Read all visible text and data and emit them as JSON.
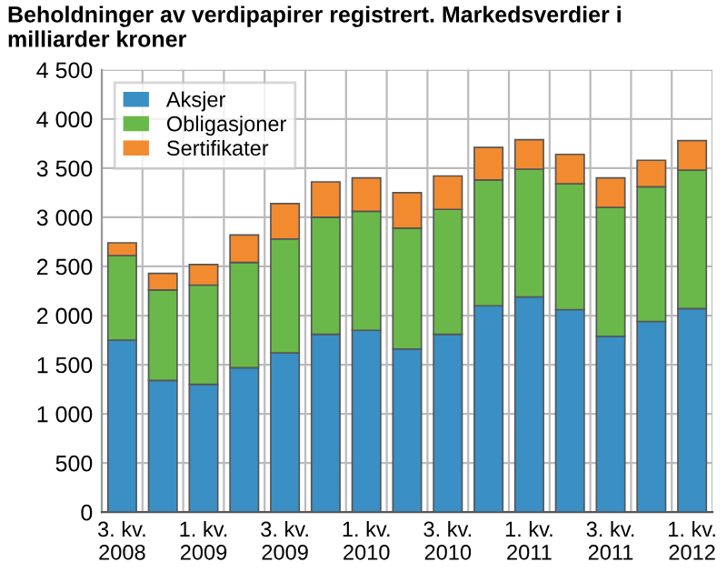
{
  "chart_data": {
    "type": "bar",
    "stacked": true,
    "title": "Beholdninger av verdipapirer registrert. Markedsverdier i milliarder kroner",
    "categories": [
      "3. kv.\n2008",
      null,
      "1. kv.\n2009",
      null,
      "3. kv.\n2009",
      null,
      "1. kv.\n2010",
      null,
      "3. kv.\n2010",
      null,
      "1. kv.\n2011",
      null,
      "3. kv.\n2011",
      null,
      "1. kv.\n2012"
    ],
    "series": [
      {
        "name": "Aksjer",
        "color": "#3a8fc4",
        "values": [
          1750,
          1340,
          1300,
          1470,
          1620,
          1810,
          1850,
          1660,
          1810,
          2100,
          2190,
          2060,
          1790,
          1940,
          2070
        ]
      },
      {
        "name": "Obligasjoner",
        "color": "#6ab84a",
        "values": [
          860,
          920,
          1010,
          1070,
          1160,
          1190,
          1210,
          1230,
          1270,
          1280,
          1300,
          1280,
          1310,
          1370,
          1410
        ]
      },
      {
        "name": "Sertifikater",
        "color": "#f28a30",
        "values": [
          130,
          170,
          210,
          280,
          360,
          360,
          340,
          360,
          340,
          330,
          300,
          300,
          300,
          270,
          300
        ]
      }
    ],
    "ylim": [
      0,
      4500
    ],
    "yticks": [
      0,
      500,
      {
        "value": 1000,
        "label": "1 000"
      },
      {
        "value": 1500,
        "label": "1 500"
      },
      {
        "value": 2000,
        "label": "2 000"
      },
      {
        "value": 2500,
        "label": "2 500"
      },
      {
        "value": 3000,
        "label": "3 000"
      },
      {
        "value": 3500,
        "label": "3 500"
      },
      {
        "value": 4000,
        "label": "4 000"
      },
      {
        "value": 4500,
        "label": "4 500"
      }
    ],
    "grid": true,
    "legend": "top left"
  }
}
